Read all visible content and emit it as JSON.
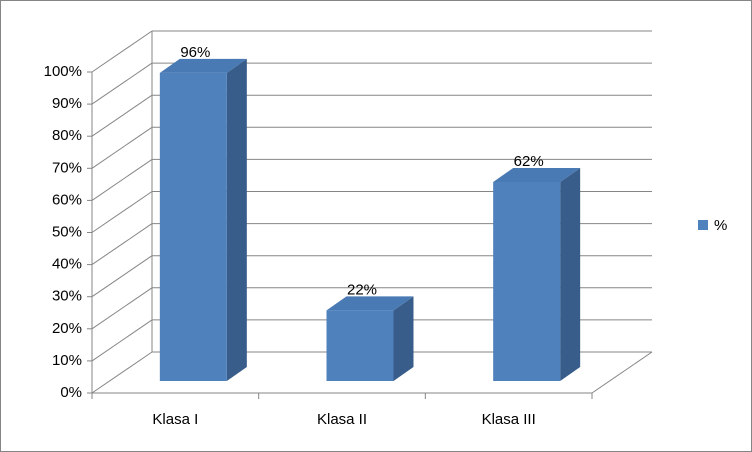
{
  "chart_data": {
    "type": "bar3d",
    "categories": [
      "Klasa I",
      "Klasa II",
      "Klasa III"
    ],
    "series": [
      {
        "name": "%",
        "color": "#4f81bd",
        "values": [
          96,
          22,
          62
        ],
        "value_labels": [
          "96%",
          "22%",
          "62%"
        ]
      }
    ],
    "ylim": [
      0,
      100
    ],
    "yticks": [
      {
        "value": 0,
        "label": "0%"
      },
      {
        "value": 10,
        "label": "10%"
      },
      {
        "value": 20,
        "label": "20%"
      },
      {
        "value": 30,
        "label": "30%"
      },
      {
        "value": 40,
        "label": "40%"
      },
      {
        "value": 50,
        "label": "50%"
      },
      {
        "value": 60,
        "label": "60%"
      },
      {
        "value": 70,
        "label": "70%"
      },
      {
        "value": 80,
        "label": "80%"
      },
      {
        "value": 90,
        "label": "90%"
      },
      {
        "value": 100,
        "label": "100%"
      }
    ],
    "grid": true,
    "legend": "right"
  }
}
